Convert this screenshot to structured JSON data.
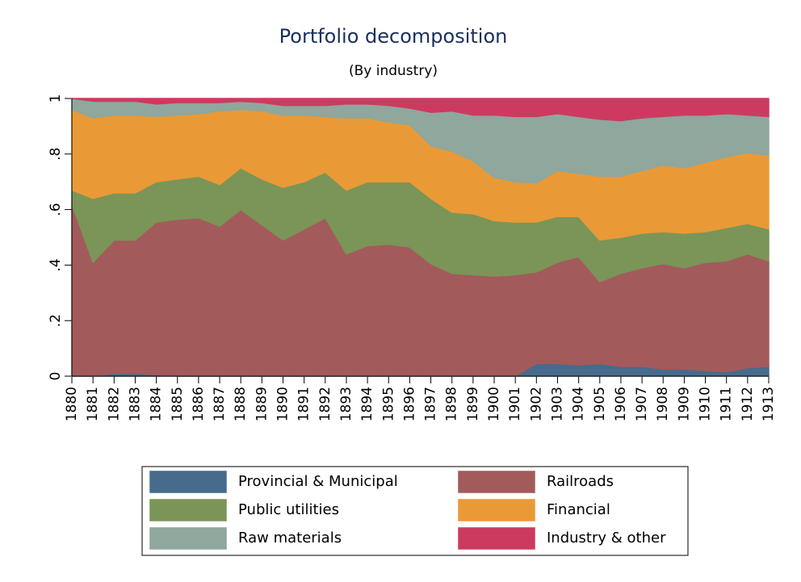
{
  "chart_data": {
    "type": "stacked_area",
    "title": "Portfolio decomposition",
    "subtitle": "(By industry)",
    "x": [
      1880,
      1881,
      1882,
      1883,
      1884,
      1885,
      1886,
      1887,
      1888,
      1889,
      1890,
      1891,
      1892,
      1893,
      1894,
      1895,
      1896,
      1897,
      1898,
      1899,
      1900,
      1901,
      1902,
      1903,
      1904,
      1905,
      1906,
      1907,
      1908,
      1909,
      1910,
      1911,
      1912,
      1913
    ],
    "xlim": [
      1880,
      1913
    ],
    "xticks": [
      1880,
      1881,
      1882,
      1883,
      1884,
      1885,
      1886,
      1887,
      1888,
      1889,
      1890,
      1891,
      1892,
      1893,
      1894,
      1895,
      1896,
      1897,
      1898,
      1899,
      1900,
      1901,
      1902,
      1903,
      1904,
      1905,
      1906,
      1907,
      1908,
      1909,
      1910,
      1911,
      1912,
      1913
    ],
    "ylim": [
      0,
      1
    ],
    "yticks": [
      0,
      {
        "value": 0.2,
        "label": ".2"
      },
      {
        "value": 0.4,
        "label": ".4"
      },
      {
        "value": 0.6,
        "label": ".6"
      },
      {
        "value": 0.8,
        "label": ".8"
      },
      1
    ],
    "grid": true,
    "series": [
      {
        "name": "Provincial & Municipal",
        "color": "#466b8c",
        "values": [
          0,
          0,
          0.01,
          0.01,
          0.005,
          0,
          0,
          0,
          0,
          0,
          0,
          0,
          0,
          0,
          0,
          0,
          0,
          0,
          0,
          0,
          0,
          0,
          0.045,
          0.045,
          0.04,
          0.045,
          0.035,
          0.035,
          0.025,
          0.025,
          0.02,
          0.015,
          0.03,
          0.035
        ]
      },
      {
        "name": "Railroads",
        "color": "#a35a5b",
        "values": [
          0.62,
          0.41,
          0.48,
          0.48,
          0.55,
          0.565,
          0.57,
          0.54,
          0.6,
          0.545,
          0.49,
          0.53,
          0.57,
          0.44,
          0.47,
          0.475,
          0.465,
          0.405,
          0.37,
          0.365,
          0.36,
          0.365,
          0.33,
          0.365,
          0.39,
          0.295,
          0.335,
          0.355,
          0.38,
          0.365,
          0.39,
          0.4,
          0.41,
          0.38
        ]
      },
      {
        "name": "Public utilities",
        "color": "#7a9557",
        "values": [
          0.05,
          0.23,
          0.17,
          0.17,
          0.145,
          0.145,
          0.15,
          0.15,
          0.15,
          0.165,
          0.19,
          0.17,
          0.165,
          0.23,
          0.23,
          0.225,
          0.235,
          0.235,
          0.22,
          0.22,
          0.2,
          0.19,
          0.18,
          0.165,
          0.145,
          0.15,
          0.13,
          0.125,
          0.115,
          0.125,
          0.11,
          0.12,
          0.11,
          0.115
        ]
      },
      {
        "name": "Financial",
        "color": "#e99a36",
        "values": [
          0.29,
          0.29,
          0.28,
          0.28,
          0.235,
          0.23,
          0.225,
          0.265,
          0.21,
          0.245,
          0.26,
          0.24,
          0.2,
          0.26,
          0.23,
          0.215,
          0.205,
          0.19,
          0.22,
          0.19,
          0.155,
          0.145,
          0.14,
          0.165,
          0.155,
          0.23,
          0.22,
          0.225,
          0.24,
          0.235,
          0.25,
          0.255,
          0.255,
          0.265
        ]
      },
      {
        "name": "Raw materials",
        "color": "#8fa79c",
        "values": [
          0.04,
          0.06,
          0.05,
          0.05,
          0.045,
          0.045,
          0.04,
          0.03,
          0.03,
          0.03,
          0.035,
          0.035,
          0.04,
          0.05,
          0.05,
          0.06,
          0.06,
          0.12,
          0.145,
          0.165,
          0.225,
          0.235,
          0.24,
          0.205,
          0.205,
          0.205,
          0.2,
          0.19,
          0.175,
          0.19,
          0.17,
          0.155,
          0.135,
          0.14
        ]
      },
      {
        "name": "Industry & other",
        "color": "#cd3a60",
        "values": [
          0,
          0.01,
          0.01,
          0.01,
          0.02,
          0.015,
          0.015,
          0.015,
          0.01,
          0.015,
          0.025,
          0.025,
          0.025,
          0.02,
          0.02,
          0.025,
          0.035,
          0.05,
          0.045,
          0.06,
          0.06,
          0.065,
          0.065,
          0.055,
          0.065,
          0.075,
          0.08,
          0.07,
          0.065,
          0.06,
          0.06,
          0.055,
          0.06,
          0.065
        ]
      }
    ]
  }
}
